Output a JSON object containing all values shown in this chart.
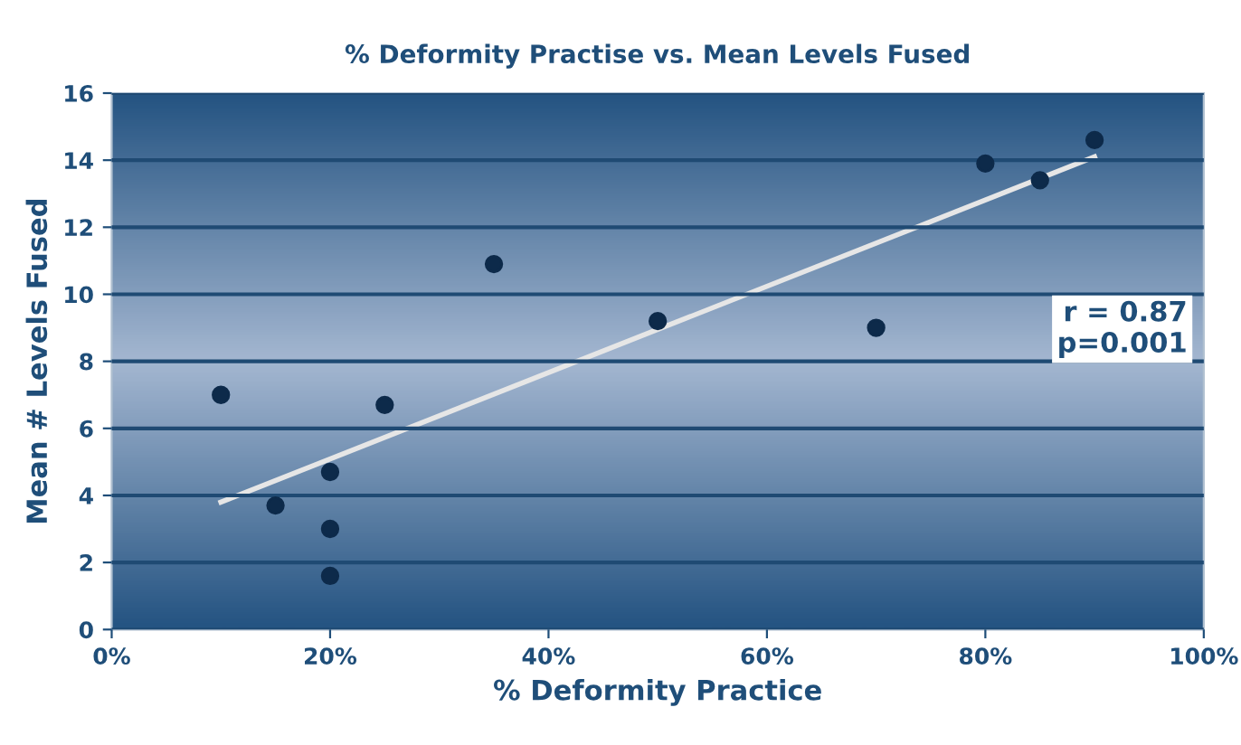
{
  "chart_data": {
    "type": "scatter",
    "title": "% Deformity Practise vs. Mean Levels Fused",
    "xlabel": "% Deformity Practice",
    "ylabel": "Mean # Levels Fused",
    "series": [
      {
        "marker": "circle",
        "color": "#0d2a4a",
        "x": [
          10,
          15,
          20,
          20,
          20,
          25,
          35,
          50,
          70,
          80,
          85,
          90
        ],
        "values": [
          7,
          3.7,
          4.7,
          3,
          1.6,
          6.7,
          10.9,
          9.2,
          9,
          13.9,
          13.4,
          14.6
        ]
      },
      {
        "type": "line",
        "color": "#e6e6e6",
        "x": [
          10,
          90
        ],
        "values": [
          3.8,
          14.1
        ]
      }
    ],
    "xlim": [
      0,
      100
    ],
    "xticks": [
      {
        "value": 0,
        "label": "0%"
      },
      {
        "value": 20,
        "label": "20%"
      },
      {
        "value": 40,
        "label": "40%"
      },
      {
        "value": 60,
        "label": "60%"
      },
      {
        "value": 80,
        "label": "80%"
      },
      {
        "value": 100,
        "label": "100%"
      }
    ],
    "ylim": [
      0,
      16
    ],
    "yticks": [
      0,
      2,
      4,
      6,
      8,
      10,
      12,
      14,
      16
    ],
    "grid": "y",
    "annotations": [
      "r = 0.87\np=0.001"
    ]
  }
}
